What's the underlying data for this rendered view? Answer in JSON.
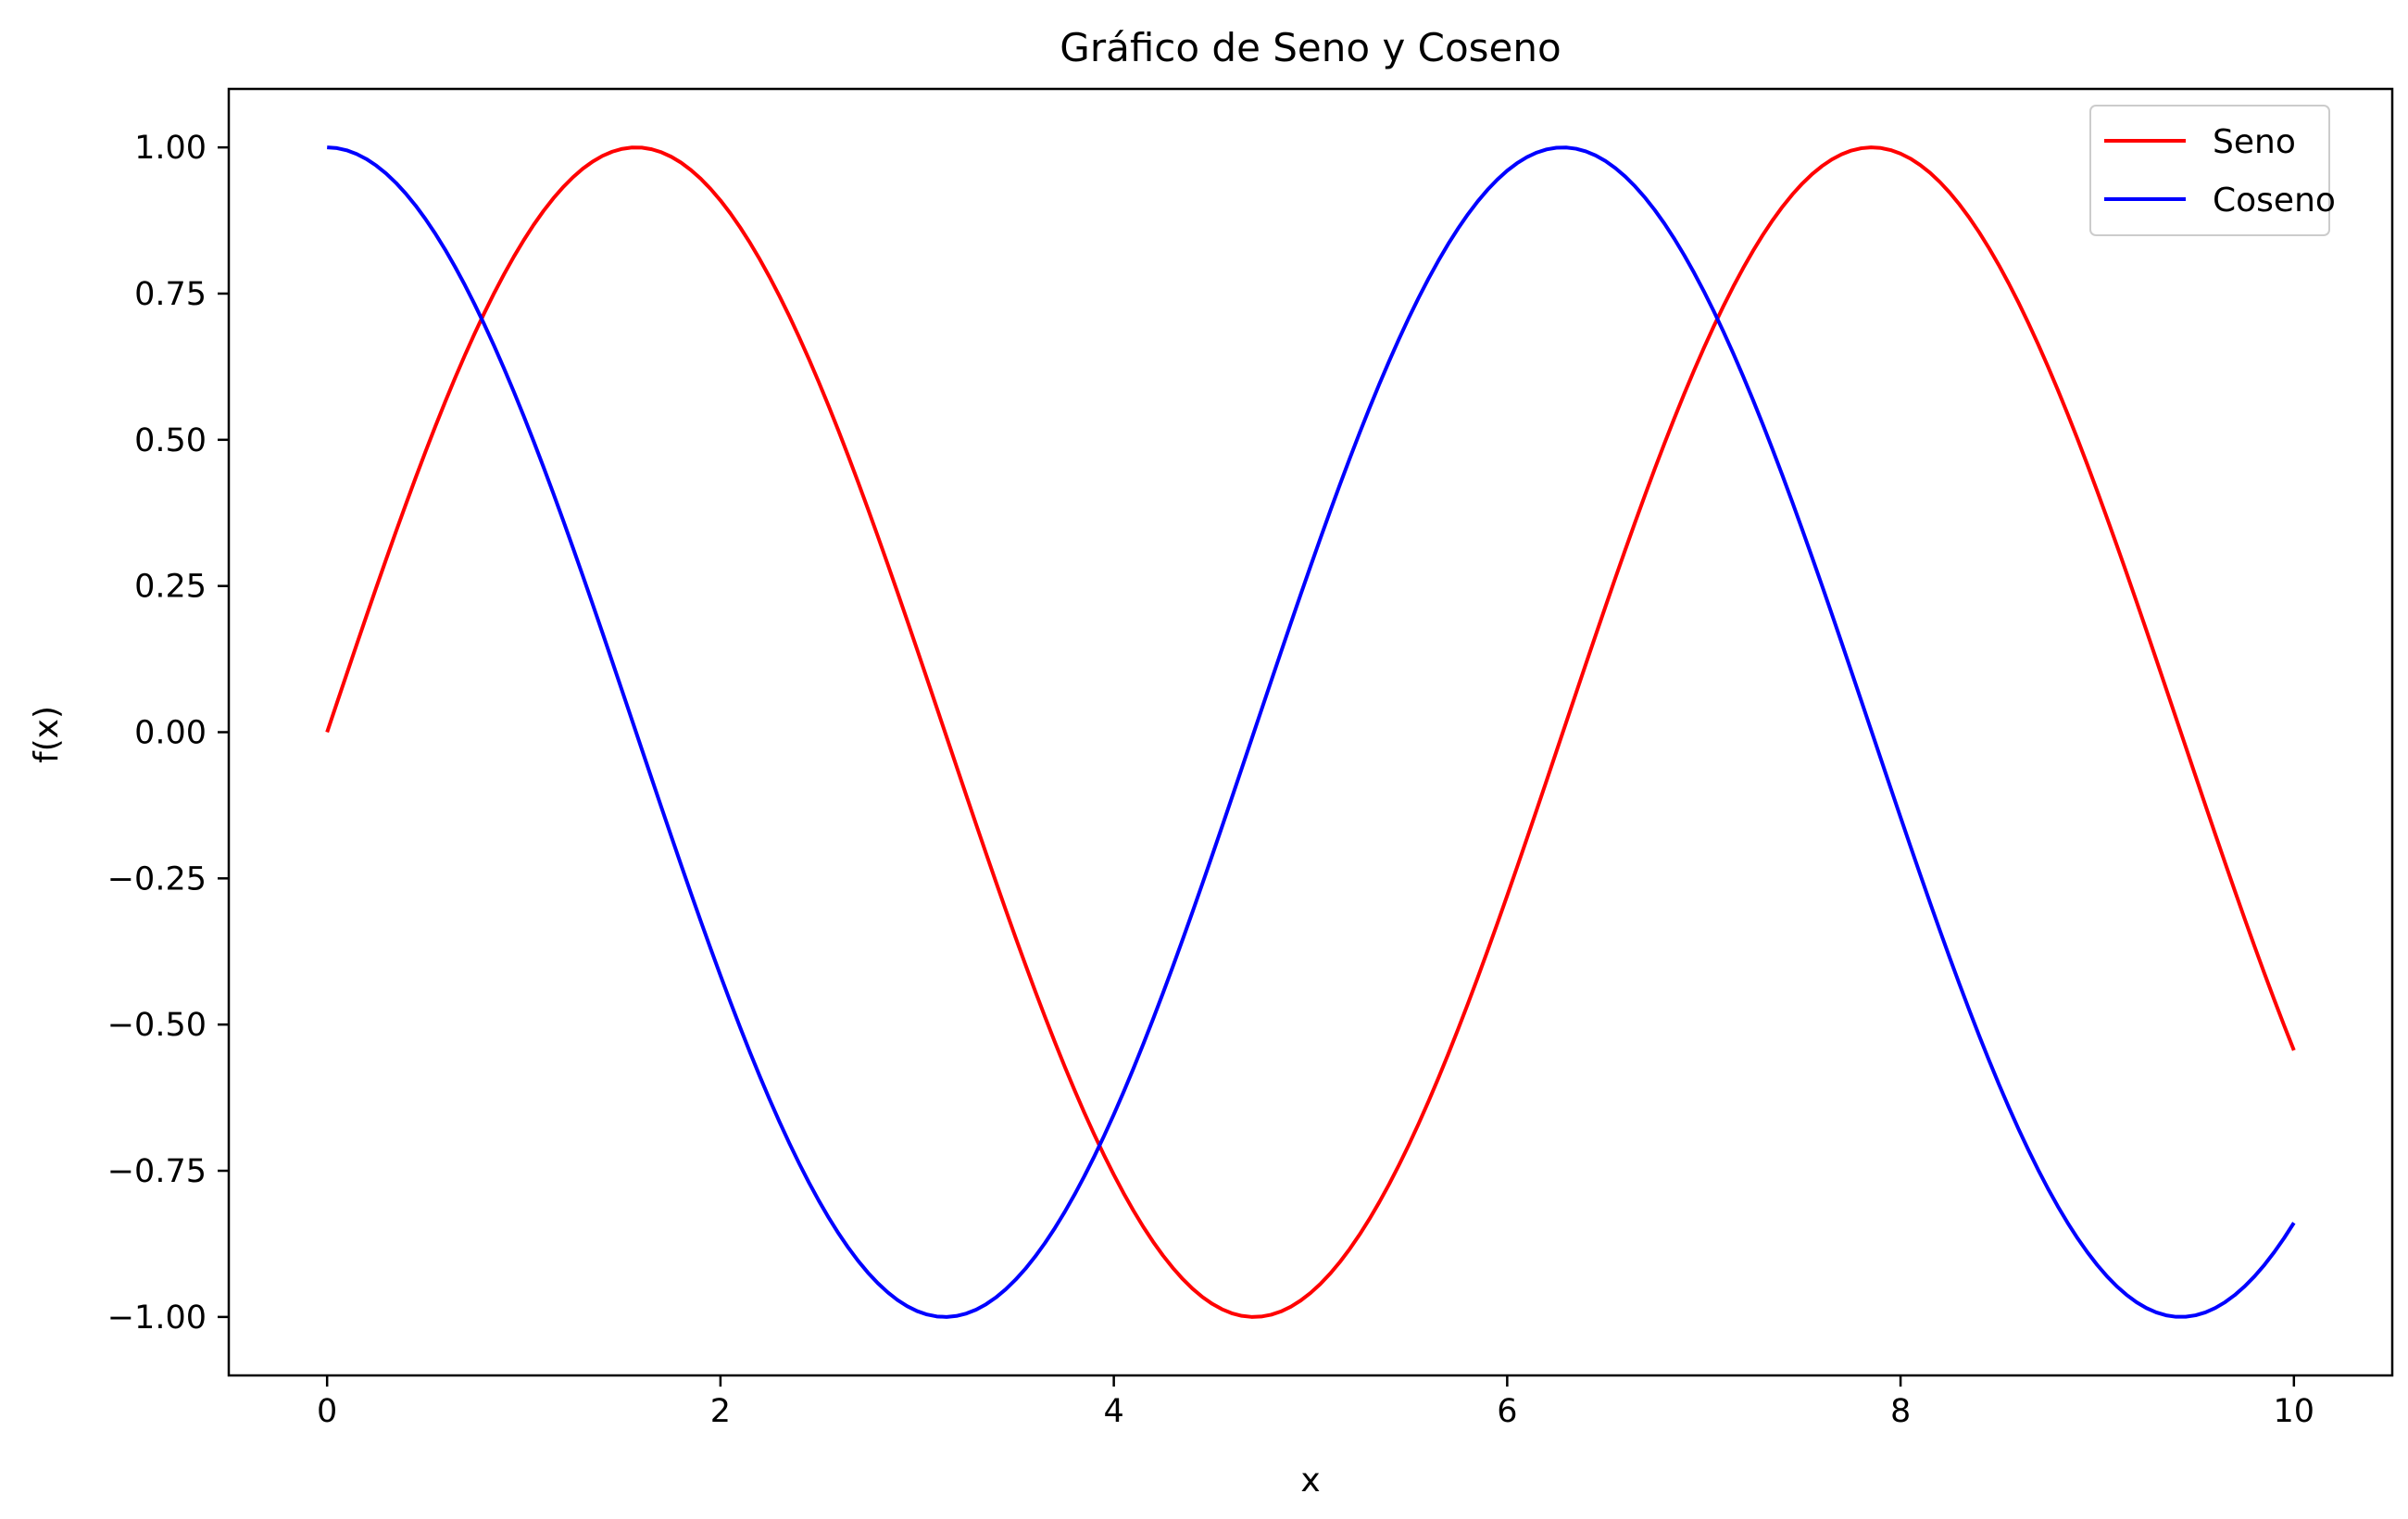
{
  "chart_data": {
    "type": "line",
    "title": "Gráfico de Seno y Coseno",
    "xlabel": "x",
    "ylabel": "f(x)",
    "xlim": [
      -0.5,
      10.5
    ],
    "ylim": [
      -1.1,
      1.1
    ],
    "x_ticks": [
      0,
      2,
      4,
      6,
      8,
      10
    ],
    "x_tick_labels": [
      "0",
      "2",
      "4",
      "6",
      "8",
      "10"
    ],
    "y_ticks": [
      1.0,
      0.75,
      0.5,
      0.25,
      0.0,
      -0.25,
      -0.5,
      -0.75,
      -1.0
    ],
    "y_tick_labels": [
      "1.00",
      "0.75",
      "0.50",
      "0.25",
      "0.00",
      "−0.25",
      "−0.50",
      "−0.75",
      "−1.00"
    ],
    "grid": false,
    "legend": {
      "position": "top-right"
    },
    "series": [
      {
        "name": "Seno",
        "color": "#ff0000",
        "x": [
          0,
          0.5,
          1,
          1.5,
          2,
          2.5,
          3,
          3.5,
          4,
          4.5,
          5,
          5.5,
          6,
          6.5,
          7,
          7.5,
          8,
          8.5,
          9,
          9.5,
          10
        ],
        "y": [
          0,
          0.479,
          0.841,
          0.997,
          0.909,
          0.598,
          0.141,
          -0.351,
          -0.757,
          -0.978,
          -0.959,
          -0.706,
          -0.279,
          0.215,
          0.657,
          0.938,
          0.989,
          0.798,
          0.412,
          -0.075,
          -0.544
        ]
      },
      {
        "name": "Coseno",
        "color": "#0000ff",
        "x": [
          0,
          0.5,
          1,
          1.5,
          2,
          2.5,
          3,
          3.5,
          4,
          4.5,
          5,
          5.5,
          6,
          6.5,
          7,
          7.5,
          8,
          8.5,
          9,
          9.5,
          10
        ],
        "y": [
          1,
          0.878,
          0.54,
          0.071,
          -0.416,
          -0.801,
          -0.99,
          -0.936,
          -0.654,
          -0.211,
          0.284,
          0.709,
          0.96,
          0.977,
          0.754,
          0.347,
          -0.146,
          -0.602,
          -0.911,
          -0.997,
          -0.839
        ]
      }
    ]
  }
}
